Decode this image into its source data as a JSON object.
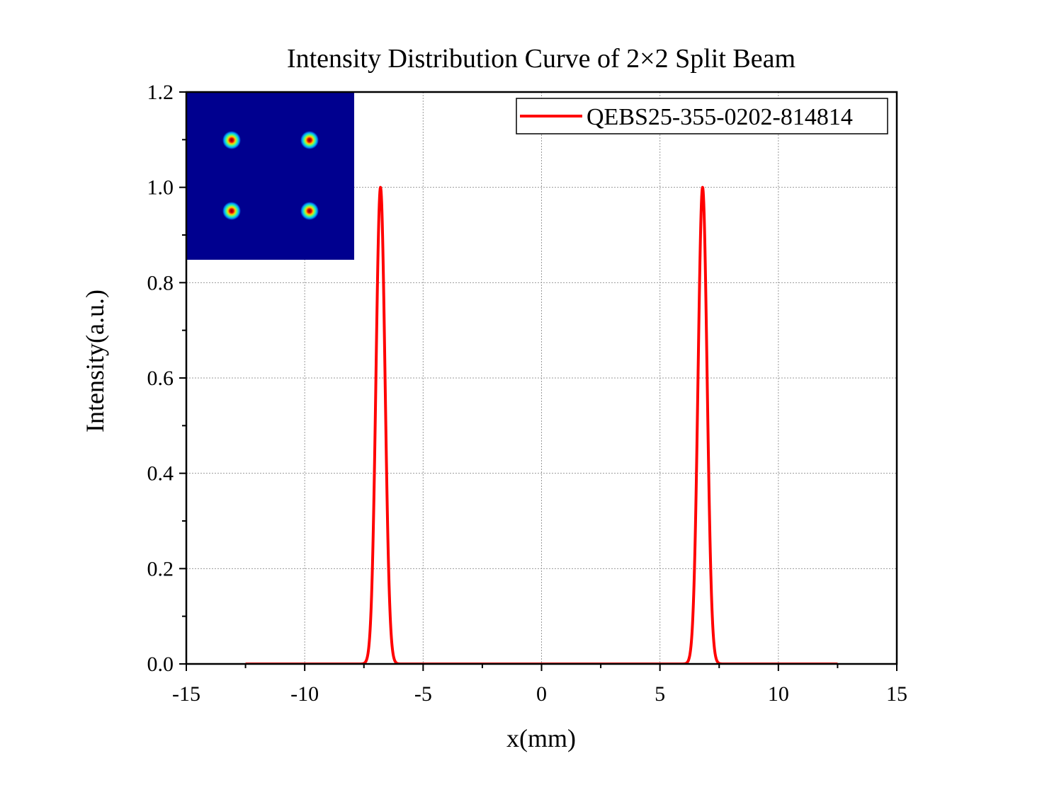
{
  "chart_data": {
    "type": "line",
    "title": "Intensity Distribution Curve of 2×2 Split Beam",
    "xlabel": "x(mm)",
    "ylabel": "Intensity(a.u.)",
    "xlim": [
      -15,
      15
    ],
    "ylim": [
      0.0,
      1.2
    ],
    "x_ticks": [
      "-15",
      "-10",
      "-5",
      "0",
      "5",
      "10",
      "15"
    ],
    "y_ticks": [
      "0.0",
      "0.2",
      "0.4",
      "0.6",
      "0.8",
      "1.0",
      "1.2"
    ],
    "grid": true,
    "legend_position": "top-right",
    "series": [
      {
        "name": "QEBS25-355-0202-814814",
        "color": "#ff0000",
        "x_range": [
          -12.5,
          12.5
        ],
        "peaks": [
          {
            "center": -6.8,
            "height": 1.0,
            "fwhm": 0.45
          },
          {
            "center": 6.8,
            "height": 1.0,
            "fwhm": 0.45
          }
        ]
      }
    ],
    "inset": {
      "description_icon": "beam-spot-image",
      "background": "#00008f",
      "spots_grid": "2x2"
    }
  }
}
